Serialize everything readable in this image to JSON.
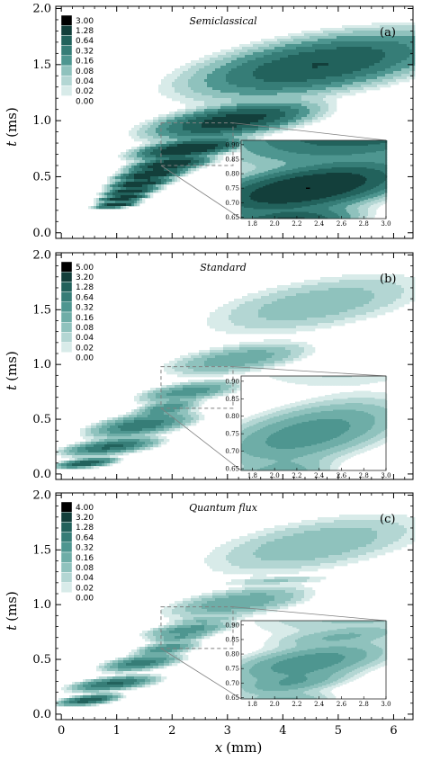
{
  "figure": {
    "xlabel_var": "x",
    "xlabel_unit": "(mm)",
    "ylabel_var": "t",
    "ylabel_unit": "(ms)"
  },
  "colors": {
    "ramp": [
      "#ffffff",
      "#d8ebe9",
      "#b3d6d3",
      "#8fc2bd",
      "#6eada7",
      "#4e9690",
      "#367d77",
      "#22625c",
      "#133f3b",
      "#000000"
    ],
    "contour_line": "#2a2a2a",
    "inset_box": "#808080"
  },
  "chart_data": [
    {
      "panel": "(a)",
      "type": "heatmap",
      "title": "Semiclassical",
      "xlim": [
        -0.1,
        6.35
      ],
      "ylim": [
        -0.05,
        2.02
      ],
      "x_ticks": [
        0,
        1,
        2,
        3,
        4,
        5,
        6
      ],
      "y_ticks": [
        "0.0",
        "0.5",
        "1.0",
        "1.5",
        "2.0"
      ],
      "colorbar_levels": [
        "3.00",
        "1.28",
        "0.64",
        "0.32",
        "0.16",
        "0.08",
        "0.04",
        "0.02",
        "0.00"
      ],
      "inset": {
        "xlim": [
          1.7,
          3.0
        ],
        "ylim": [
          0.645,
          0.915
        ],
        "x_ticks": [
          "1.8",
          "2.0",
          "2.2",
          "2.4",
          "2.6",
          "2.8",
          "3.0"
        ],
        "y_ticks": [
          "0.65",
          "0.70",
          "0.75",
          "0.80",
          "0.85",
          "0.90"
        ],
        "zoom_region": {
          "x": [
            1.8,
            3.1
          ],
          "y": [
            0.6,
            0.98
          ]
        }
      },
      "blobs": [
        {
          "x": 1.0,
          "t": 0.25,
          "sx": 0.16,
          "st": 0.013,
          "amp": 3.0
        },
        {
          "x": 1.12,
          "t": 0.31,
          "sx": 0.18,
          "st": 0.015,
          "amp": 3.0
        },
        {
          "x": 1.25,
          "t": 0.37,
          "sx": 0.2,
          "st": 0.017,
          "amp": 3.0
        },
        {
          "x": 1.42,
          "t": 0.44,
          "sx": 0.23,
          "st": 0.02,
          "amp": 3.0
        },
        {
          "x": 1.62,
          "t": 0.52,
          "sx": 0.26,
          "st": 0.024,
          "amp": 3.0
        },
        {
          "x": 1.95,
          "t": 0.61,
          "sx": 0.3,
          "st": 0.03,
          "amp": 3.0
        },
        {
          "x": 2.3,
          "t": 0.75,
          "sx": 0.4,
          "st": 0.04,
          "amp": 3.0
        },
        {
          "x": 3.1,
          "t": 1.0,
          "sx": 0.62,
          "st": 0.07,
          "amp": 2.0
        },
        {
          "x": 4.65,
          "t": 1.5,
          "sx": 1.0,
          "st": 0.13,
          "amp": 1.3
        }
      ]
    },
    {
      "panel": "(b)",
      "type": "heatmap",
      "title": "Standard",
      "xlim": [
        -0.1,
        6.35
      ],
      "ylim": [
        -0.05,
        2.02
      ],
      "x_ticks": [
        0,
        1,
        2,
        3,
        4,
        5,
        6
      ],
      "y_ticks": [
        "0.0",
        "0.5",
        "1.0",
        "1.5",
        "2.0"
      ],
      "colorbar_levels": [
        "5.00",
        "3.20",
        "1.28",
        "0.64",
        "0.32",
        "0.16",
        "0.08",
        "0.04",
        "0.02",
        "0.00"
      ],
      "inset": {
        "xlim": [
          1.7,
          3.0
        ],
        "ylim": [
          0.645,
          0.915
        ],
        "x_ticks": [
          "1.8",
          "2.0",
          "2.2",
          "2.4",
          "2.6",
          "2.8",
          "3.0"
        ],
        "y_ticks": [
          "0.65",
          "0.70",
          "0.75",
          "0.80",
          "0.85",
          "0.90"
        ],
        "zoom_region": {
          "x": [
            1.8,
            3.1
          ],
          "y": [
            0.6,
            0.98
          ]
        }
      },
      "blobs": [
        {
          "x": 0.45,
          "t": 0.1,
          "sx": 0.22,
          "st": 0.02,
          "amp": 2.5
        },
        {
          "x": 0.9,
          "t": 0.25,
          "sx": 0.35,
          "st": 0.035,
          "amp": 1.5
        },
        {
          "x": 1.45,
          "t": 0.45,
          "sx": 0.4,
          "st": 0.05,
          "amp": 1.1
        },
        {
          "x": 1.9,
          "t": 0.6,
          "sx": 0.25,
          "st": 0.035,
          "amp": 0.6
        },
        {
          "x": 2.3,
          "t": 0.75,
          "sx": 0.4,
          "st": 0.045,
          "amp": 0.5
        },
        {
          "x": 3.2,
          "t": 1.05,
          "sx": 0.6,
          "st": 0.07,
          "amp": 0.28
        },
        {
          "x": 4.6,
          "t": 1.55,
          "sx": 1.0,
          "st": 0.14,
          "amp": 0.14
        }
      ]
    },
    {
      "panel": "(c)",
      "type": "heatmap",
      "title": "Quantum flux",
      "xlim": [
        -0.1,
        6.35
      ],
      "ylim": [
        -0.05,
        2.02
      ],
      "x_ticks": [
        0,
        1,
        2,
        3,
        4,
        5,
        6
      ],
      "y_ticks": [
        "0.0",
        "0.5",
        "1.0",
        "1.5",
        "2.0"
      ],
      "colorbar_levels": [
        "4.00",
        "3.20",
        "1.28",
        "0.64",
        "0.32",
        "0.16",
        "0.08",
        "0.04",
        "0.02",
        "0.00"
      ],
      "inset": {
        "xlim": [
          1.7,
          3.0
        ],
        "ylim": [
          0.645,
          0.915
        ],
        "x_ticks": [
          "1.8",
          "2.0",
          "2.2",
          "2.4",
          "2.6",
          "2.8",
          "3.0"
        ],
        "y_ticks": [
          "0.65",
          "0.70",
          "0.75",
          "0.80",
          "0.85",
          "0.90"
        ],
        "zoom_region": {
          "x": [
            1.8,
            3.1
          ],
          "y": [
            0.6,
            0.98
          ]
        }
      },
      "blobs": [
        {
          "x": 0.5,
          "t": 0.13,
          "sx": 0.22,
          "st": 0.022,
          "amp": 2.2
        },
        {
          "x": 0.95,
          "t": 0.28,
          "sx": 0.32,
          "st": 0.03,
          "amp": 1.5
        },
        {
          "x": 1.45,
          "t": 0.47,
          "sx": 0.3,
          "st": 0.035,
          "amp": 1.0
        },
        {
          "x": 1.9,
          "t": 0.6,
          "sx": 0.25,
          "st": 0.03,
          "amp": 0.6
        },
        {
          "x": 2.15,
          "t": 0.7,
          "sx": 0.25,
          "st": 0.022,
          "amp": 0.3
        },
        {
          "x": 2.3,
          "t": 0.77,
          "sx": 0.35,
          "st": 0.035,
          "amp": 0.5
        },
        {
          "x": 2.6,
          "t": 0.86,
          "sx": 0.3,
          "st": 0.018,
          "amp": 0.15
        },
        {
          "x": 3.2,
          "t": 1.02,
          "sx": 0.6,
          "st": 0.07,
          "amp": 0.3
        },
        {
          "x": 3.9,
          "t": 1.22,
          "sx": 0.5,
          "st": 0.02,
          "amp": 0.08
        },
        {
          "x": 4.6,
          "t": 1.55,
          "sx": 1.0,
          "st": 0.14,
          "amp": 0.15
        }
      ]
    }
  ]
}
